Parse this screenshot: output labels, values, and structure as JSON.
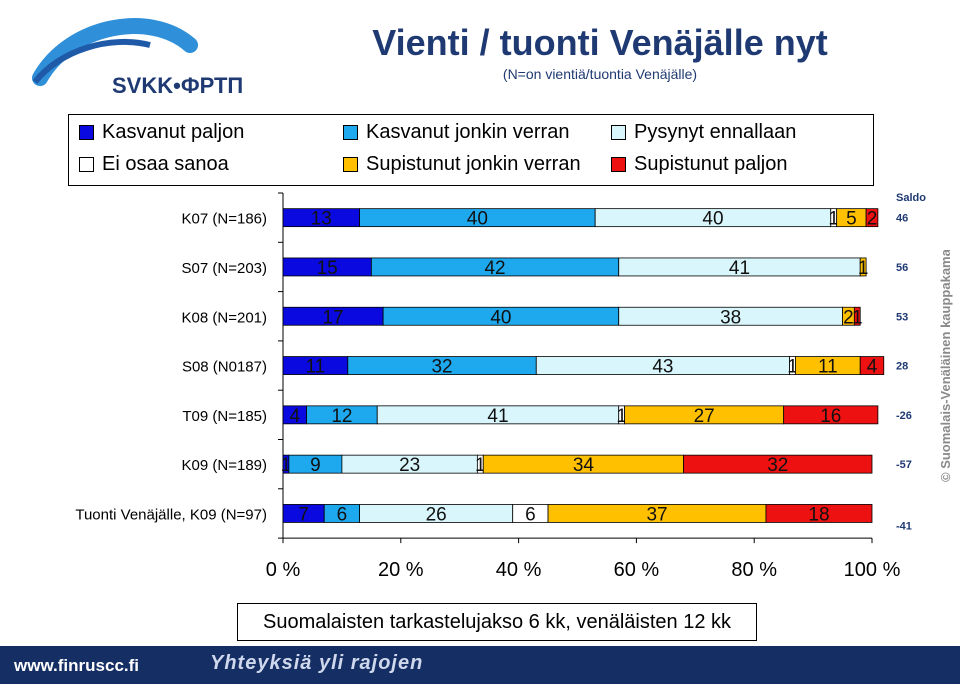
{
  "header": {
    "title": "Vienti / tuonti Venäjälle nyt",
    "subtitle": "(N=on vientiä/tuontia Venäjälle)"
  },
  "logo": {
    "text": "SVKK•ФРТП"
  },
  "legend": {
    "items": [
      {
        "label": "Kasvanut paljon",
        "color": "#0a0ae0"
      },
      {
        "label": "Kasvanut jonkin verran",
        "color": "#1ea8ee"
      },
      {
        "label": "Pysynyt ennallaan",
        "color": "#d8f6fb"
      },
      {
        "label": "Ei osaa sanoa",
        "color": "#ffffff"
      },
      {
        "label": "Supistunut jonkin verran",
        "color": "#ffc000"
      },
      {
        "label": "Supistunut paljon",
        "color": "#ee1111"
      }
    ]
  },
  "saldo_header": "Saldo",
  "note": "Suomalaisten tarkastelujakso 6 kk, venäläisten 12 kk",
  "footer": {
    "url": "www.finruscc.fi",
    "slogan": "Yhteyksiä yli rajojen"
  },
  "watermark": "© Suomalais-Venäläinen kauppakamari",
  "chart_data": {
    "type": "bar",
    "orientation": "horizontal",
    "stacked": true,
    "percent": true,
    "categories": [
      "K07 (N=186)",
      "S07 (N=203)",
      "K08 (N=201)",
      "S08 (N0187)",
      "T09 (N=185)",
      "K09 (N=189)",
      "Tuonti Venäjälle, K09 (N=97)"
    ],
    "series": [
      {
        "name": "Kasvanut paljon",
        "color": "#0a0ae0",
        "values": [
          13,
          15,
          17,
          11,
          4,
          1,
          7
        ]
      },
      {
        "name": "Kasvanut jonkin verran",
        "color": "#1ea8ee",
        "values": [
          40,
          42,
          40,
          32,
          12,
          9,
          6
        ]
      },
      {
        "name": "Pysynyt ennallaan",
        "color": "#d8f6fb",
        "values": [
          40,
          41,
          38,
          43,
          41,
          23,
          26
        ]
      },
      {
        "name": "Ei osaa sanoa",
        "color": "#ffffff",
        "values": [
          1,
          0,
          0,
          1,
          1,
          1,
          6
        ]
      },
      {
        "name": "Supistunut jonkin verran",
        "color": "#ffc000",
        "values": [
          5,
          1,
          2,
          11,
          27,
          34,
          37
        ]
      },
      {
        "name": "Supistunut paljon",
        "color": "#ee1111",
        "values": [
          2,
          0,
          1,
          4,
          16,
          32,
          18
        ]
      }
    ],
    "saldo": [
      46,
      56,
      53,
      28,
      -26,
      -57,
      -41
    ],
    "xticks": [
      "0 %",
      "20 %",
      "40 %",
      "60 %",
      "80 %",
      "100 %"
    ],
    "xlim": [
      0,
      100
    ],
    "legend_position": "top",
    "grid": false
  }
}
